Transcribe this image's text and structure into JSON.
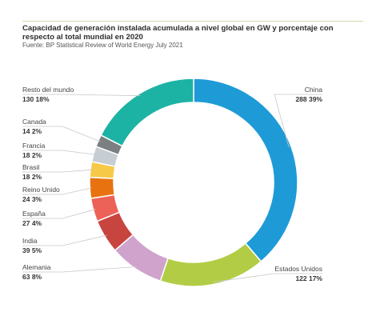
{
  "header": {
    "title": "Capacidad de generación instalada acumulada a nivel global en GW y porcentaje con respecto al total mundial en 2020",
    "source": "Fuente: BP Statistical Review of World Energy July 2021"
  },
  "chart_data": {
    "type": "pie",
    "style": "donut",
    "title": "Capacidad de generación instalada acumulada a nivel global en GW y porcentaje con respecto al total mundial en 2020",
    "slices": [
      {
        "label": "China",
        "value": 288,
        "percent": "39%",
        "color": "#1e9bd7"
      },
      {
        "label": "Estados Unidos",
        "value": 122,
        "percent": "17%",
        "color": "#b2cd45"
      },
      {
        "label": "Alemania",
        "value": 63,
        "percent": "8%",
        "color": "#cfa3cc"
      },
      {
        "label": "India",
        "value": 39,
        "percent": "5%",
        "color": "#c8443f"
      },
      {
        "label": "España",
        "value": 27,
        "percent": "4%",
        "color": "#ec6258"
      },
      {
        "label": "Reino Unido",
        "value": 24,
        "percent": "3%",
        "color": "#e8720f"
      },
      {
        "label": "Brasil",
        "value": 18,
        "percent": "2%",
        "color": "#f7c948"
      },
      {
        "label": "Francia",
        "value": 18,
        "percent": "2%",
        "color": "#c6cdd3"
      },
      {
        "label": "Canada",
        "value": 14,
        "percent": "2%",
        "color": "#7b7f81"
      },
      {
        "label": "Resto del mundo",
        "value": 130,
        "percent": "18%",
        "color": "#1db3a4"
      }
    ]
  }
}
